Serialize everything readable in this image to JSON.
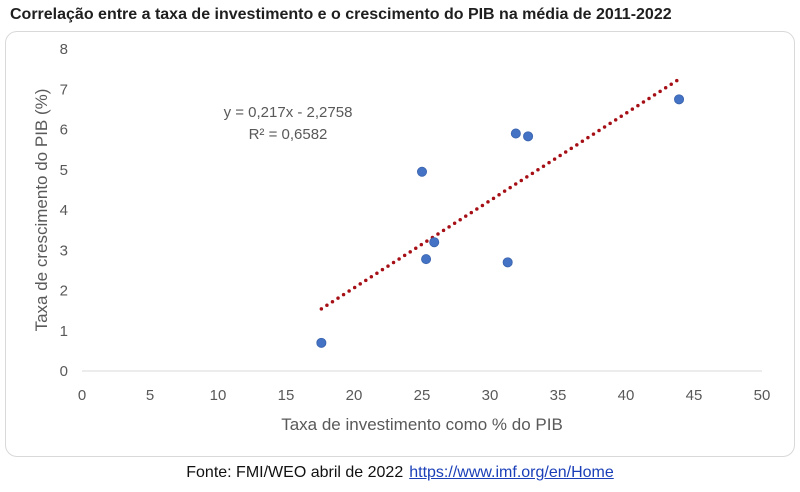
{
  "title": "Correlação entre a taxa de investimento e o crescimento do PIB na média de 2011-2022",
  "source": {
    "text": "Fonte:  FMI/WEO abril de 2022",
    "link": "https://www.imf.org/en/Home"
  },
  "chart_data": {
    "type": "scatter",
    "title": "Correlação entre a taxa de investimento e o crescimento do PIB na média de 2011-2022",
    "xlabel": "Taxa de investimento como % do PIB",
    "ylabel": "Taxa de crescimento do PIB (%)",
    "xlim": [
      0,
      50
    ],
    "ylim": [
      0,
      8
    ],
    "xticks": [
      0,
      5,
      10,
      15,
      20,
      25,
      30,
      35,
      40,
      45,
      50
    ],
    "yticks": [
      0,
      1,
      2,
      3,
      4,
      5,
      6,
      7,
      8
    ],
    "grid": false,
    "legend": "none",
    "points": [
      {
        "x": 17.6,
        "y": 0.7
      },
      {
        "x": 25.0,
        "y": 4.95
      },
      {
        "x": 25.3,
        "y": 2.78
      },
      {
        "x": 25.9,
        "y": 3.2
      },
      {
        "x": 31.3,
        "y": 2.7
      },
      {
        "x": 31.9,
        "y": 5.9
      },
      {
        "x": 32.8,
        "y": 5.83
      },
      {
        "x": 43.9,
        "y": 6.75
      }
    ],
    "trendline": {
      "slope": 0.217,
      "intercept": -2.2758,
      "x_range": [
        17.6,
        43.9
      ],
      "equation_label": "y = 0,217x - 2,2758",
      "r2_label": "R² = 0,6582"
    },
    "colors": {
      "points": "#4472c4",
      "trendline": "#a50f15",
      "axis": "#d9d9d9",
      "tick_text": "#595959"
    }
  }
}
